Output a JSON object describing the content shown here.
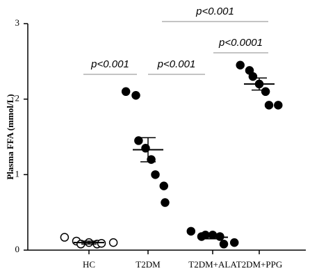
{
  "chart_data": {
    "type": "dot",
    "y_label": "Plasma FFA (mmol/L)",
    "categories": [
      "HC",
      "T2DM",
      "T2DM+ALA",
      "T2DM+PPG"
    ],
    "points": [
      [
        0.17,
        0.12,
        0.08,
        0.1,
        0.08,
        0.09,
        0.1
      ],
      [
        2.1,
        2.05,
        1.45,
        1.35,
        1.2,
        1.0,
        0.85,
        0.63
      ],
      [
        0.25,
        0.18,
        0.2,
        0.2,
        0.18,
        0.08,
        0.1
      ],
      [
        2.45,
        2.38,
        2.3,
        2.2,
        2.1,
        1.92,
        1.92
      ]
    ],
    "means": [
      0.1,
      1.33,
      0.17,
      2.2
    ],
    "sem": [
      0.02,
      0.16,
      0.02,
      0.08
    ],
    "marker_fill": [
      "#ffffff",
      "#000000",
      "#000000",
      "#000000"
    ],
    "color": "#000000",
    "ylim": [
      0,
      3
    ],
    "yticks": [
      0,
      1,
      2,
      3
    ],
    "annotations": [
      "p<0.001",
      "p<0.001",
      "p<0.0001",
      "p<0.001"
    ]
  }
}
